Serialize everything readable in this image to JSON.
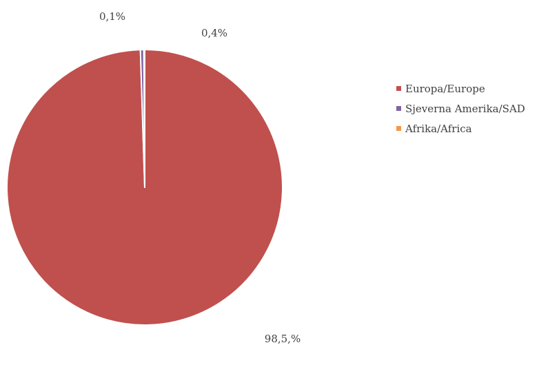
{
  "chart_data": {
    "type": "pie",
    "title": "",
    "categories": [
      "Europa/Europe",
      "Sjeverna Amerika/SAD",
      "Afrika/Africa"
    ],
    "values": [
      98.5,
      0.4,
      0.1
    ],
    "data_labels": [
      "98,5,%",
      "0,4%",
      "0,1%"
    ],
    "colors": [
      "#c0504d",
      "#8064a2",
      "#f79646"
    ],
    "legend": {
      "placement": "right",
      "entries": [
        "Europa/Europe",
        "Sjeverna Amerika/SAD",
        "Afrika/Africa"
      ]
    }
  }
}
